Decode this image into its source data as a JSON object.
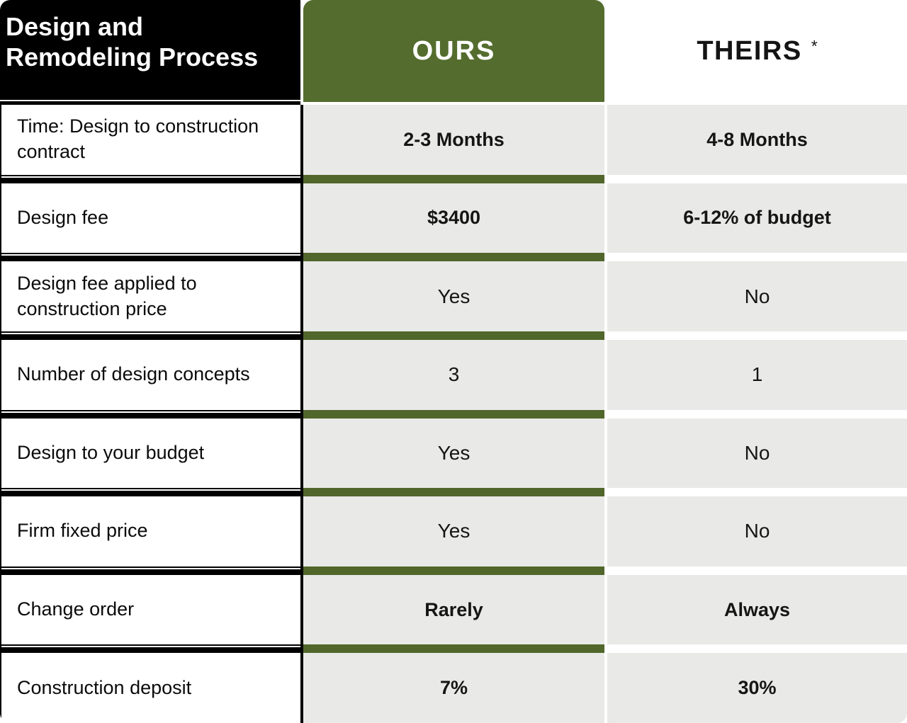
{
  "chart_data": {
    "type": "table",
    "title": "Design and Remodeling Process",
    "column_headers": {
      "ours": "OURS",
      "theirs": "THEIRS",
      "theirs_footnote_marker": "*"
    },
    "rows": [
      {
        "label": "Time: Design to construction contract",
        "ours": "2-3 Months",
        "theirs": "4-8 Months"
      },
      {
        "label": "Design fee",
        "ours": "$3400",
        "theirs": "6-12% of budget"
      },
      {
        "label": "Design fee applied to construction price",
        "ours": "Yes",
        "theirs": "No"
      },
      {
        "label": "Number of design concepts",
        "ours": "3",
        "theirs": "1"
      },
      {
        "label": "Design to your budget",
        "ours": "Yes",
        "theirs": "No"
      },
      {
        "label": "Firm fixed price",
        "ours": "Yes",
        "theirs": "No"
      },
      {
        "label": "Change order",
        "ours": "Rarely",
        "theirs": "Always"
      },
      {
        "label": "Construction deposit",
        "ours": "7%",
        "theirs": "30%"
      }
    ],
    "bold_value_rows": [
      0,
      1,
      6,
      7
    ],
    "legend_position": "none",
    "grid": "off"
  },
  "colors": {
    "header_black": "#000000",
    "accent_green": "#546d2e",
    "separator_green": "#50662a",
    "cell_gray": "#e9e9e7",
    "title_text": "#ffffff",
    "value_text": "#151515"
  }
}
